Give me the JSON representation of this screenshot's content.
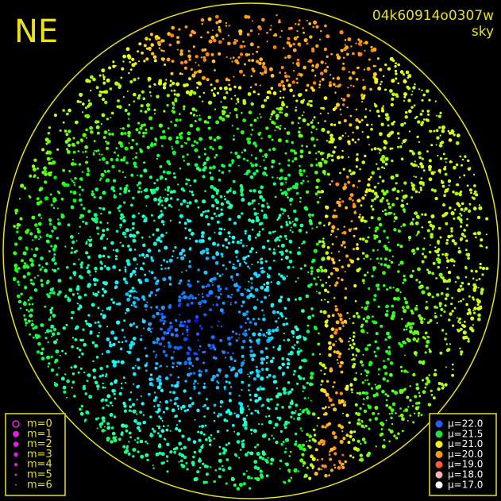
{
  "header": {
    "direction": "NE",
    "image_id": "04k60914o0307w",
    "image_kind": "sky"
  },
  "magnitude_legend": {
    "items": [
      {
        "label": "m=0"
      },
      {
        "label": "m=1"
      },
      {
        "label": "m=2"
      },
      {
        "label": "m=3"
      },
      {
        "label": "m=4"
      },
      {
        "label": "m=5"
      },
      {
        "label": "m=6"
      }
    ],
    "color": "#e020e0"
  },
  "brightness_legend": {
    "items": [
      {
        "label": "μ=22.0",
        "color": "#2a5cff"
      },
      {
        "label": "μ=21.5",
        "color": "#22dd44"
      },
      {
        "label": "μ=21.0",
        "color": "#ffee22"
      },
      {
        "label": "μ=20.0",
        "color": "#ff9a10"
      },
      {
        "label": "μ=19.0",
        "color": "#ff5a30"
      },
      {
        "label": "μ=18.0",
        "color": "#ffb0b0"
      },
      {
        "label": "μ=17.0",
        "color": "#ffffff"
      }
    ]
  }
}
